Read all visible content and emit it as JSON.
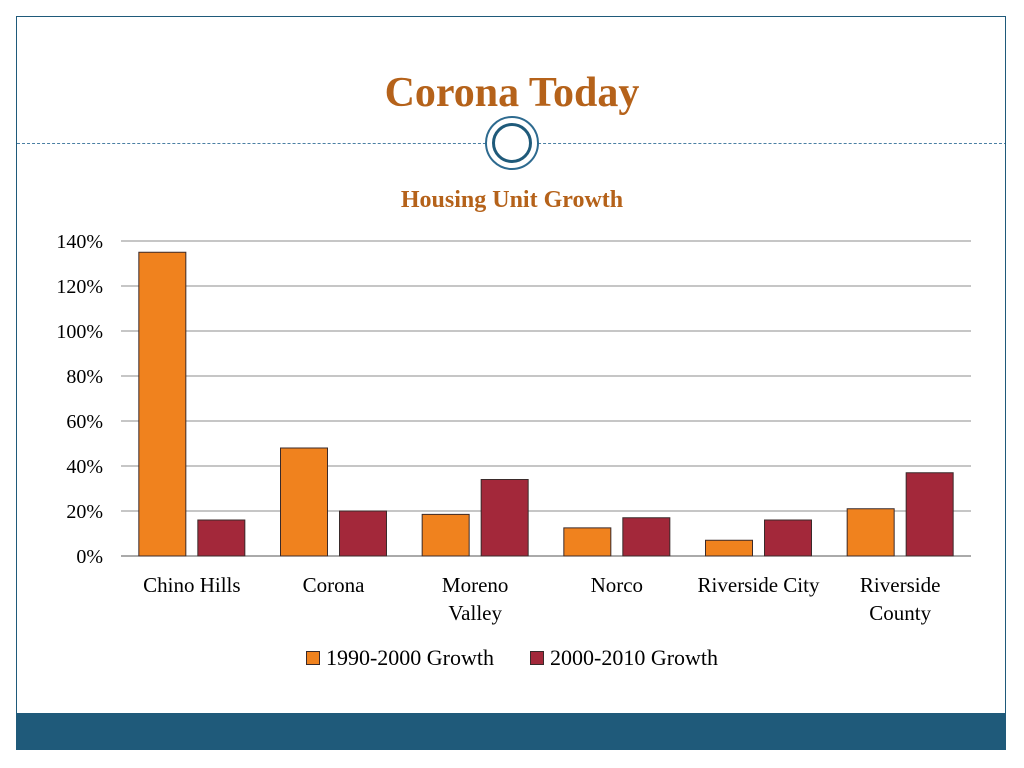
{
  "slide": {
    "title": "Corona Today"
  },
  "colors": {
    "title": "#b5621a",
    "frame": "#1f5a7a",
    "series1": "#f0821e",
    "series2": "#a3283a"
  },
  "chart_data": {
    "type": "bar",
    "title": "Housing Unit Growth",
    "xlabel": "",
    "ylabel": "",
    "categories": [
      [
        "Chino Hills"
      ],
      [
        "Corona"
      ],
      [
        "Moreno",
        "Valley"
      ],
      [
        "Norco"
      ],
      [
        "Riverside City"
      ],
      [
        "Riverside",
        "County"
      ]
    ],
    "series": [
      {
        "name": "1990-2000 Growth",
        "values": [
          135,
          48,
          18.5,
          12.5,
          7,
          21
        ]
      },
      {
        "name": "2000-2010 Growth",
        "values": [
          16,
          20,
          34,
          17,
          16,
          37
        ]
      }
    ],
    "ylim": [
      0,
      140
    ],
    "yticks": [
      0,
      20,
      40,
      60,
      80,
      100,
      120,
      140
    ],
    "ytick_suffix": "%",
    "grid": true,
    "legend_position": "bottom"
  }
}
